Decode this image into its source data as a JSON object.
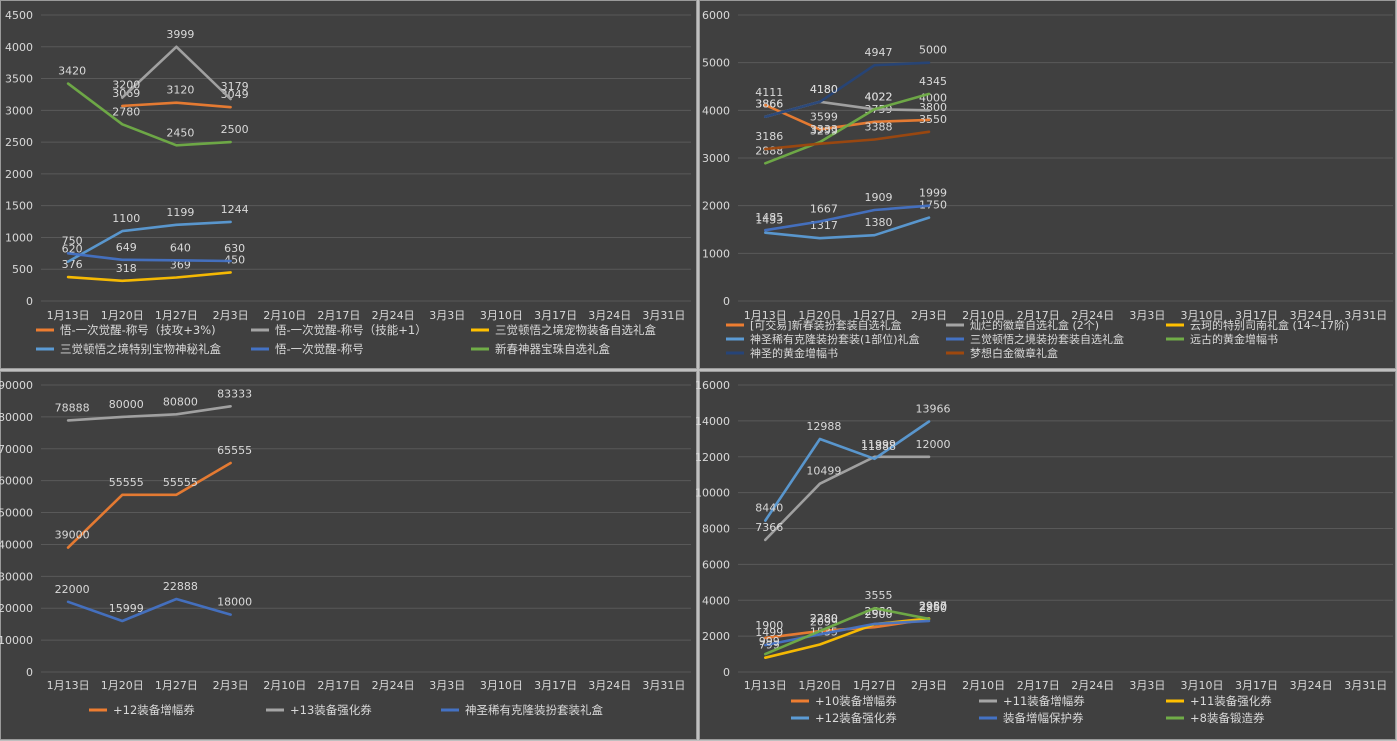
{
  "colors": {
    "background": "#404040",
    "grid": "#595959",
    "axis_text": "#d9d9d9",
    "label_text": "#d9d9d9"
  },
  "chart_data": [
    {
      "type": "line",
      "categories": [
        "1月13日",
        "1月20日",
        "1月27日",
        "2月3日",
        "2月10日",
        "2月17日",
        "2月24日",
        "3月3日",
        "3月10日",
        "3月17日",
        "3月24日",
        "3月31日"
      ],
      "yticks": [
        0,
        500,
        1000,
        1500,
        2000,
        2500,
        3000,
        3500,
        4000,
        4500
      ],
      "ylim": [
        0,
        4500
      ],
      "grid": true,
      "legend_position": "bottom",
      "series": [
        {
          "name": "悟-一次觉醒-称号（技攻+3%)",
          "color": "#ed7d31",
          "values": [
            null,
            3069,
            3120,
            3049,
            null,
            null,
            null,
            null,
            null,
            null,
            null,
            null
          ]
        },
        {
          "name": "悟-一次觉醒-称号（技能+1）",
          "color": "#a5a5a5",
          "values": [
            null,
            3200,
            3999,
            3179,
            null,
            null,
            null,
            null,
            null,
            null,
            null,
            null
          ]
        },
        {
          "name": "三觉顿悟之境宠物装备自选礼盒",
          "color": "#ffc000",
          "values": [
            376,
            318,
            369,
            450,
            null,
            null,
            null,
            null,
            null,
            null,
            null,
            null
          ]
        },
        {
          "name": "三觉顿悟之境特别宝物神秘礼盒",
          "color": "#5b9bd5",
          "values": [
            620,
            1100,
            1199,
            1244,
            null,
            null,
            null,
            null,
            null,
            null,
            null,
            null
          ]
        },
        {
          "name": "悟-一次觉醒-称号",
          "color": "#4472c4",
          "values": [
            750,
            649,
            640,
            630,
            null,
            null,
            null,
            null,
            null,
            null,
            null,
            null
          ]
        },
        {
          "name": "新春神器宝珠自选礼盒",
          "color": "#70ad47",
          "values": [
            3420,
            2780,
            2450,
            2500,
            null,
            null,
            null,
            null,
            null,
            null,
            null,
            null
          ]
        }
      ]
    },
    {
      "type": "line",
      "categories": [
        "1月13日",
        "1月20日",
        "1月27日",
        "2月3日",
        "2月10日",
        "2月17日",
        "2月24日",
        "3月3日",
        "3月10日",
        "3月17日",
        "3月24日",
        "3月31日"
      ],
      "yticks": [
        0,
        1000,
        2000,
        3000,
        4000,
        5000,
        6000
      ],
      "ylim": [
        0,
        6000
      ],
      "grid": true,
      "legend_position": "bottom",
      "series": [
        {
          "name": "[可交易]新春装扮套装自选礼盒",
          "color": "#ed7d31",
          "values": [
            4111,
            3599,
            3759,
            3800,
            null,
            null,
            null,
            null,
            null,
            null,
            null,
            null
          ]
        },
        {
          "name": "灿烂的徽章自选礼盒 (2个)",
          "color": "#a5a5a5",
          "values": [
            3866,
            4180,
            4022,
            4000,
            null,
            null,
            null,
            null,
            null,
            null,
            null,
            null
          ]
        },
        {
          "name": "云珂的特别司南礼盒 (14~17阶)",
          "color": "#ffc000",
          "values": [
            null,
            null,
            null,
            null,
            null,
            null,
            null,
            null,
            null,
            null,
            null,
            null
          ]
        },
        {
          "name": "神圣稀有克隆装扮套装(1部位)礼盒",
          "color": "#5b9bd5",
          "values": [
            1433,
            1317,
            1380,
            1750,
            null,
            null,
            null,
            null,
            null,
            null,
            null,
            null
          ]
        },
        {
          "name": "三觉顿悟之境装扮套装自选礼盒",
          "color": "#4472c4",
          "values": [
            1485,
            1667,
            1909,
            1999,
            null,
            null,
            null,
            null,
            null,
            null,
            null,
            null
          ]
        },
        {
          "name": "远古的黄金增幅书",
          "color": "#70ad47",
          "values": [
            2888,
            3333,
            4022,
            4345,
            null,
            null,
            null,
            null,
            null,
            null,
            null,
            null
          ]
        },
        {
          "name": "神圣的黄金增幅书",
          "color": "#264478",
          "values": [
            3866,
            4180,
            4947,
            5000,
            null,
            null,
            null,
            null,
            null,
            null,
            null,
            null
          ]
        },
        {
          "name": "梦想白金徽章礼盒",
          "color": "#9e480e",
          "values": [
            3186,
            3299,
            3388,
            3550,
            null,
            null,
            null,
            null,
            null,
            null,
            null,
            null
          ]
        }
      ]
    },
    {
      "type": "line",
      "categories": [
        "1月13日",
        "1月20日",
        "1月27日",
        "2月3日",
        "2月10日",
        "2月17日",
        "2月24日",
        "3月3日",
        "3月10日",
        "3月17日",
        "3月24日",
        "3月31日"
      ],
      "yticks": [
        0,
        10000,
        20000,
        30000,
        40000,
        50000,
        60000,
        70000,
        80000,
        90000
      ],
      "ylim": [
        0,
        90000
      ],
      "grid": true,
      "legend_position": "bottom",
      "series": [
        {
          "name": "+12装备增幅券",
          "color": "#ed7d31",
          "values": [
            39000,
            55555,
            55555,
            65555,
            null,
            null,
            null,
            null,
            null,
            null,
            null,
            null
          ]
        },
        {
          "name": "+13装备强化券",
          "color": "#a5a5a5",
          "values": [
            78888,
            80000,
            80800,
            83333,
            null,
            null,
            null,
            null,
            null,
            null,
            null,
            null
          ]
        },
        {
          "name": "神圣稀有克隆装扮套装礼盒",
          "color": "#4472c4",
          "values": [
            22000,
            15999,
            22888,
            18000,
            null,
            null,
            null,
            null,
            null,
            null,
            null,
            null
          ]
        }
      ]
    },
    {
      "type": "line",
      "categories": [
        "1月13日",
        "1月20日",
        "1月27日",
        "2月3日",
        "2月10日",
        "2月17日",
        "2月24日",
        "3月3日",
        "3月10日",
        "3月17日",
        "3月24日",
        "3月31日"
      ],
      "yticks": [
        0,
        2000,
        4000,
        6000,
        8000,
        10000,
        12000,
        14000,
        16000
      ],
      "ylim": [
        0,
        16000
      ],
      "grid": true,
      "legend_position": "bottom",
      "series": [
        {
          "name": "+10装备增幅券",
          "color": "#ed7d31",
          "values": [
            1900,
            2280,
            2500,
            2950,
            null,
            null,
            null,
            null,
            null,
            null,
            null,
            null
          ]
        },
        {
          "name": "+11装备增幅券",
          "color": "#a5a5a5",
          "values": [
            7366,
            10499,
            11999,
            12000,
            null,
            null,
            null,
            null,
            null,
            null,
            null,
            null
          ]
        },
        {
          "name": "+11装备强化券",
          "color": "#ffc000",
          "values": [
            799,
            1535,
            2666,
            2987,
            null,
            null,
            null,
            null,
            null,
            null,
            null,
            null
          ]
        },
        {
          "name": "+12装备强化券",
          "color": "#5b9bd5",
          "values": [
            8440,
            12988,
            11888,
            13966,
            null,
            null,
            null,
            null,
            null,
            null,
            null,
            null
          ]
        },
        {
          "name": "装备增幅保护券",
          "color": "#4472c4",
          "values": [
            1499,
            2099,
            2680,
            2850,
            null,
            null,
            null,
            null,
            null,
            null,
            null,
            null
          ]
        },
        {
          "name": "+8装备锻造券",
          "color": "#70ad47",
          "values": [
            999,
            2280,
            3555,
            2960,
            null,
            null,
            null,
            null,
            null,
            null,
            null,
            null
          ]
        }
      ]
    }
  ]
}
